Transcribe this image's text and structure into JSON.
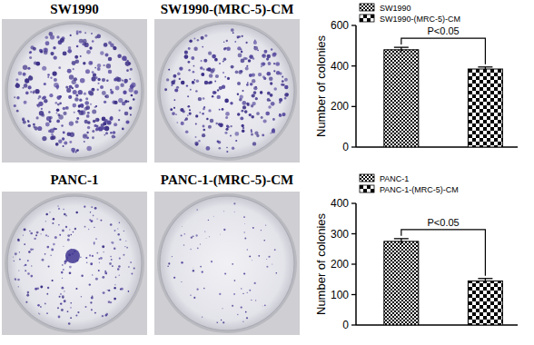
{
  "chart_data": [
    {
      "type": "bar",
      "categories": [
        null
      ],
      "series": [
        {
          "name": "SW1990",
          "color": "#000000",
          "values": [
            480
          ],
          "errors": [
            12
          ]
        },
        {
          "name": "SW1990-(MRC-5)-CM",
          "color": "#000000",
          "values": [
            385
          ],
          "errors": [
            10
          ]
        }
      ],
      "y_label": "Number of colonies",
      "ylim": [
        0,
        600
      ],
      "yticks": [
        0,
        200,
        400,
        600
      ],
      "grid": false,
      "legend": "top-left",
      "annotation": "P<0.05"
    },
    {
      "type": "bar",
      "categories": [
        null
      ],
      "series": [
        {
          "name": "PANC-1",
          "color": "#000000",
          "values": [
            275
          ],
          "errors": [
            9
          ]
        },
        {
          "name": "PANC-1-(MRC-5)-CM",
          "color": "#000000",
          "values": [
            145
          ],
          "errors": [
            8
          ]
        }
      ],
      "y_label": "Number of colonies",
      "ylim": [
        0,
        400
      ],
      "yticks": [
        0,
        100,
        200,
        300,
        400
      ],
      "grid": false,
      "legend": "top-left",
      "annotation": "P<0.05"
    }
  ],
  "dish_panels": [
    {
      "labels": [
        "SW1990",
        "SW1990-(MRC-5)-CM"
      ]
    },
    {
      "labels": [
        "PANC-1",
        "PANC-1-(MRC-5)-CM"
      ]
    }
  ]
}
